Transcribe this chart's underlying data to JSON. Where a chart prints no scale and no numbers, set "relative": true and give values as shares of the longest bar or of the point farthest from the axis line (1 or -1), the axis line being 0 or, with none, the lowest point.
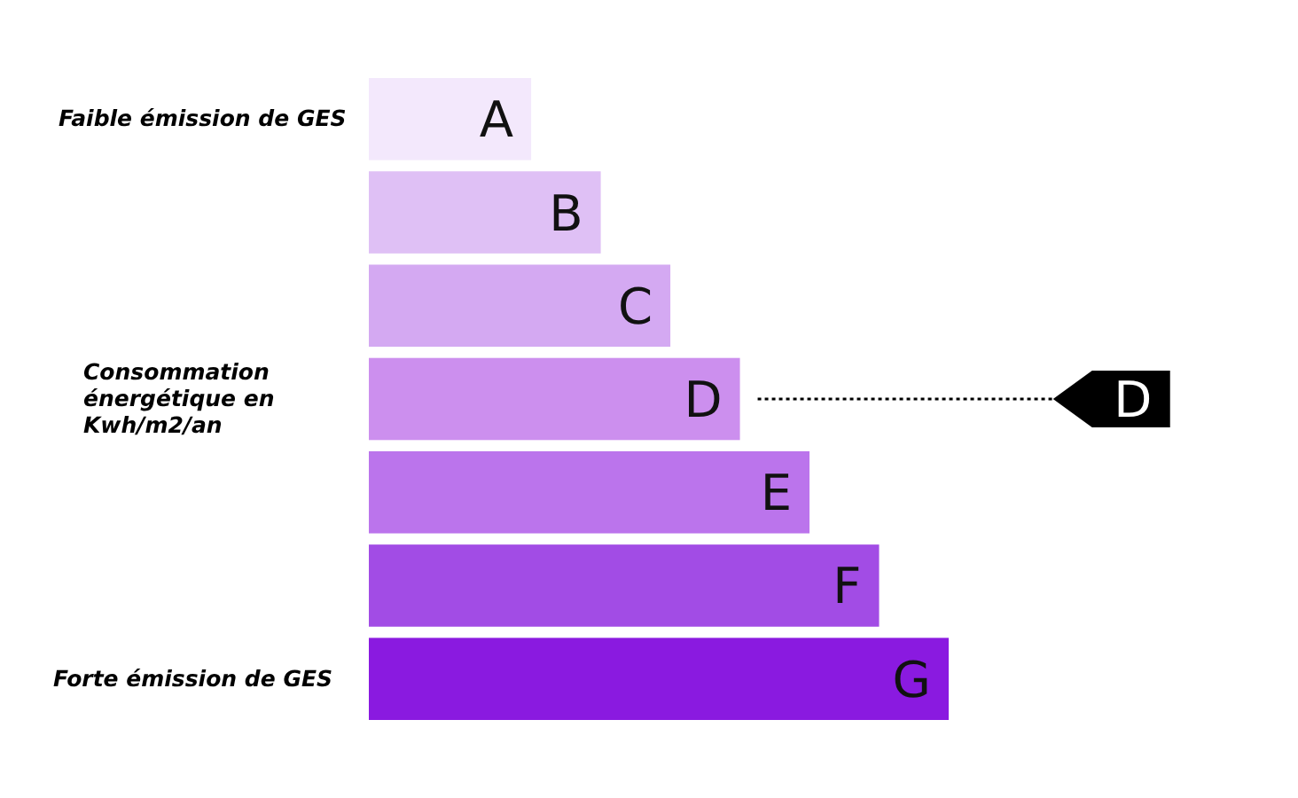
{
  "chart_data": {
    "type": "bar",
    "orientation": "horizontal",
    "relative": true,
    "categories": [
      "A",
      "B",
      "C",
      "D",
      "E",
      "F",
      "G"
    ],
    "values": [
      0.28,
      0.4,
      0.52,
      0.64,
      0.76,
      0.88,
      1
    ],
    "colors": [
      "#f3e8fc",
      "#dfc0f5",
      "#d4a9f2",
      "#cc8fee",
      "#bb74ec",
      "#a24ce5",
      "#8a1ae0"
    ],
    "annotations": [
      "Faible émission de GES",
      "Consommation énergétique en Kwh/m2/an",
      "Forte émission de GES",
      "D"
    ]
  }
}
